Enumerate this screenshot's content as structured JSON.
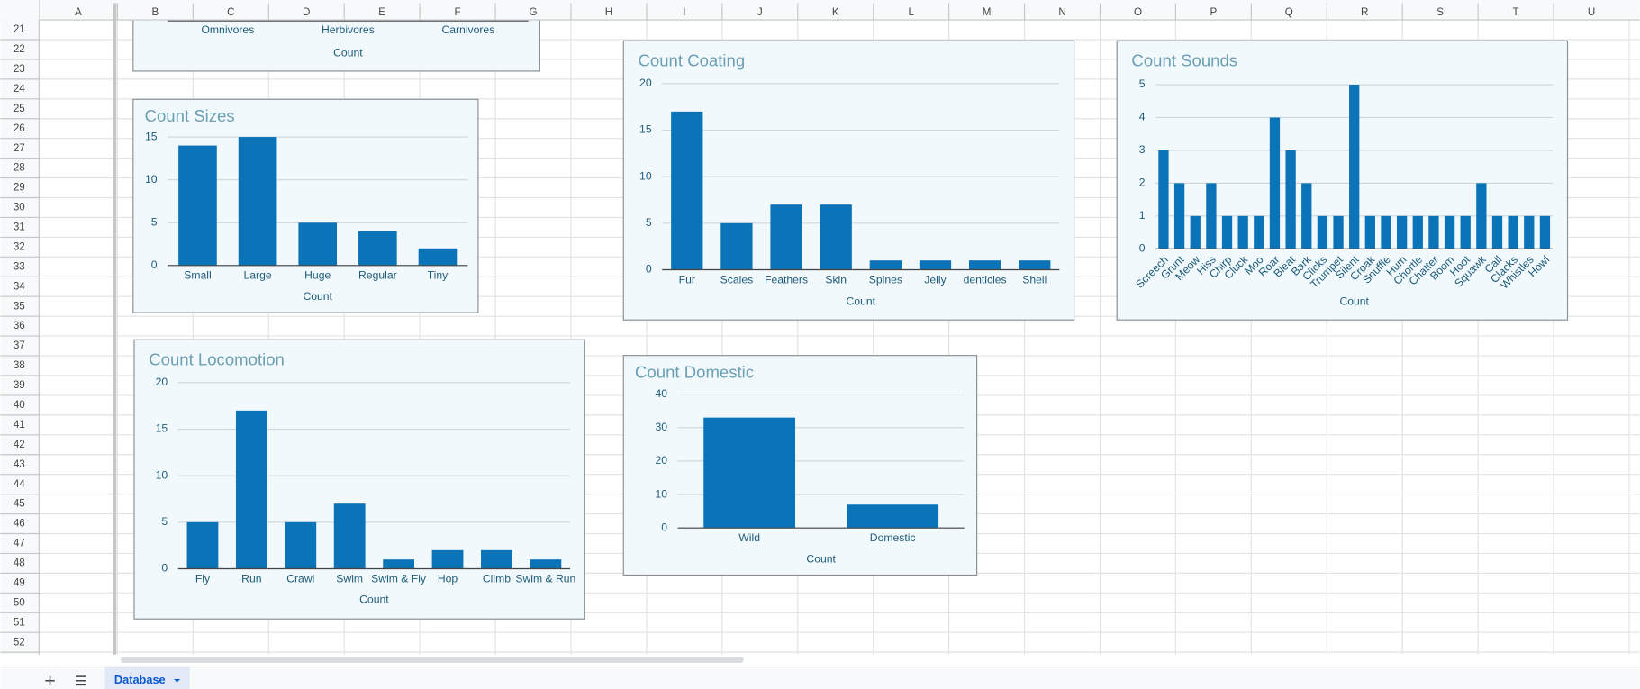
{
  "columns": [
    "A",
    "B",
    "C",
    "D",
    "E",
    "F",
    "G",
    "H",
    "I",
    "J",
    "K",
    "L",
    "M",
    "N",
    "O",
    "P",
    "Q",
    "R",
    "S",
    "T",
    "U"
  ],
  "rows": [
    21,
    22,
    23,
    24,
    25,
    26,
    27,
    28,
    29,
    30,
    31,
    32,
    33,
    34,
    35,
    36,
    37,
    38,
    39,
    40,
    41,
    42,
    43,
    44,
    45,
    46,
    47,
    48,
    49,
    50,
    51,
    52
  ],
  "sheet_tabs": [
    "Database"
  ],
  "chart_data": [
    {
      "type": "bar",
      "x_label": "Count",
      "categories": [
        "Omnivores",
        "Herbivores",
        "Carnivores"
      ],
      "color": "#0b74b8"
    },
    {
      "type": "bar",
      "title": "Count Sizes",
      "x_label": "Count",
      "categories": [
        "Small",
        "Large",
        "Huge",
        "Regular",
        "Tiny"
      ],
      "values": [
        14,
        15,
        5,
        4,
        2
      ],
      "color": "#0b74b8",
      "ylim": [
        0,
        15
      ],
      "yticks": [
        0,
        5,
        10,
        15
      ],
      "grid": true
    },
    {
      "type": "bar",
      "title": "Count Coating",
      "x_label": "Count",
      "categories": [
        "Fur",
        "Scales",
        "Feathers",
        "Skin",
        "Spines",
        "Jelly",
        "denticles",
        "Shell"
      ],
      "values": [
        17,
        5,
        7,
        7,
        1,
        1,
        1,
        1
      ],
      "color": "#0b74b8",
      "ylim": [
        0,
        20
      ],
      "yticks": [
        0,
        5,
        10,
        15,
        20
      ],
      "grid": true
    },
    {
      "type": "bar",
      "title": "Count Sounds",
      "x_label": "Count",
      "categories": [
        "Screech",
        "Grunt",
        "Meow",
        "Hiss",
        "Chirp",
        "Cluck",
        "Moo",
        "Roar",
        "Bleat",
        "Bark",
        "Clicks",
        "Trumpet",
        "Silent",
        "Croak",
        "Snuffle",
        "Hum",
        "Chortle",
        "Chatter",
        "Boom",
        "Hoot",
        "Squawk",
        "Call",
        "Clacks",
        "Whistles",
        "Howl"
      ],
      "values": [
        3,
        2,
        1,
        2,
        1,
        1,
        1,
        4,
        3,
        2,
        1,
        1,
        5,
        1,
        1,
        1,
        1,
        1,
        1,
        1,
        2,
        1,
        1,
        1,
        1
      ],
      "color": "#0b74b8",
      "ylim": [
        0,
        5
      ],
      "yticks": [
        0,
        1,
        2,
        3,
        4,
        5
      ],
      "grid": true
    },
    {
      "type": "bar",
      "title": "Count Locomotion",
      "x_label": "Count",
      "categories": [
        "Fly",
        "Run",
        "Crawl",
        "Swim",
        "Swim & Fly",
        "Hop",
        "Climb",
        "Swim & Run"
      ],
      "values": [
        5,
        17,
        5,
        7,
        1,
        2,
        2,
        1
      ],
      "color": "#0b74b8",
      "ylim": [
        0,
        20
      ],
      "yticks": [
        0,
        5,
        10,
        15,
        20
      ],
      "grid": true
    },
    {
      "type": "bar",
      "title": "Count Domestic",
      "x_label": "Count",
      "categories": [
        "Wild",
        "Domestic"
      ],
      "values": [
        33,
        7
      ],
      "color": "#0b74b8",
      "ylim": [
        0,
        40
      ],
      "yticks": [
        0,
        10,
        20,
        30,
        40
      ],
      "grid": true
    }
  ]
}
